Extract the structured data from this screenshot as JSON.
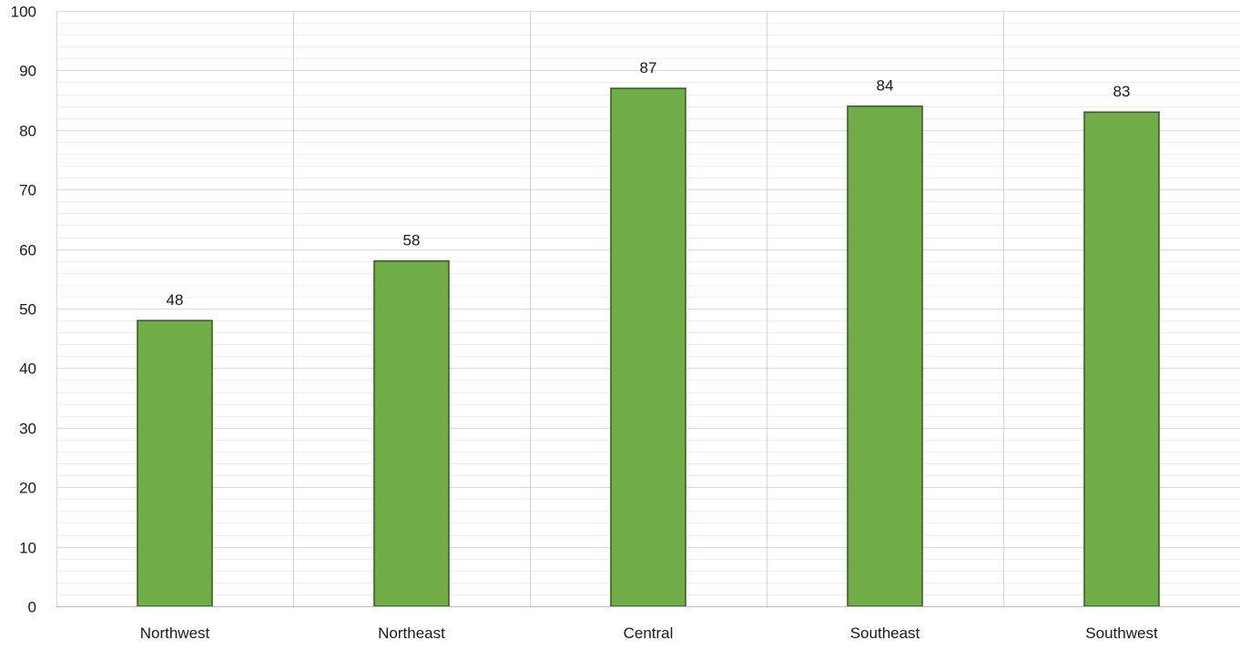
{
  "chart_data": {
    "type": "bar",
    "title": "",
    "xlabel": "",
    "ylabel": "",
    "categories": [
      "Northwest",
      "Northeast",
      "Central",
      "Southeast",
      "Southwest"
    ],
    "values": [
      48,
      58,
      87,
      84,
      83
    ],
    "ylim": [
      0,
      100
    ],
    "major_tick_step": 10,
    "minor_tick_step": 2,
    "y_ticks": [
      "0",
      "10",
      "20",
      "30",
      "40",
      "50",
      "60",
      "70",
      "80",
      "90",
      "100"
    ],
    "data_labels": [
      "48",
      "58",
      "87",
      "84",
      "83"
    ],
    "grid": true,
    "legend": "none",
    "colors": {
      "bar_fill": "#70ad47",
      "bar_stroke": "#375623",
      "major_grid": "#d9d9d9",
      "minor_grid": "#f0f0f0",
      "axis": "#bfbfbf"
    }
  }
}
